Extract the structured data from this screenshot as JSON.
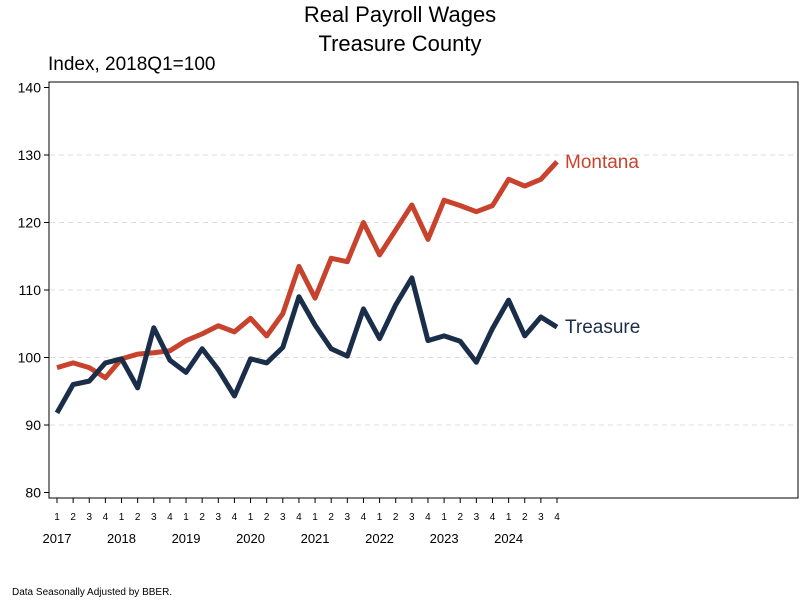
{
  "chart_data": {
    "type": "line",
    "title": "Real Payroll Wages",
    "subtitle": "Treasure County",
    "y_label": "Index, 2018Q1=100",
    "footnote": "Data Seasonally Adjusted by BBER.",
    "categories": [
      "1",
      "2",
      "3",
      "4",
      "1",
      "2",
      "3",
      "4",
      "1",
      "2",
      "3",
      "4",
      "1",
      "2",
      "3",
      "4",
      "1",
      "2",
      "3",
      "4",
      "1",
      "2",
      "3",
      "4",
      "1",
      "2",
      "3",
      "4",
      "1",
      "2",
      "3",
      "4"
    ],
    "category_groups": [
      "2017",
      "2018",
      "2019",
      "2020",
      "2021",
      "2022",
      "2023",
      "2024"
    ],
    "series": [
      {
        "name": "Montana",
        "color": "#c8432d",
        "values": [
          98.5,
          99.2,
          98.5,
          97.0,
          99.8,
          100.5,
          100.7,
          101.0,
          102.5,
          103.5,
          104.7,
          103.8,
          105.8,
          103.2,
          106.5,
          113.5,
          108.8,
          114.7,
          114.2,
          120.0,
          115.2,
          118.9,
          122.6,
          117.5,
          123.3,
          122.5,
          121.6,
          122.5,
          126.4,
          125.4,
          126.4,
          129.0
        ]
      },
      {
        "name": "Treasure",
        "color": "#1a2e4a",
        "values": [
          91.8,
          96.0,
          96.5,
          99.2,
          99.8,
          95.5,
          104.4,
          99.6,
          97.8,
          101.3,
          98.2,
          94.3,
          99.8,
          99.2,
          101.5,
          109.0,
          104.8,
          101.3,
          100.2,
          107.2,
          102.8,
          107.8,
          111.8,
          102.5,
          103.2,
          102.4,
          99.3,
          104.3,
          108.5,
          103.2,
          106.0,
          104.5
        ]
      }
    ],
    "ylim": [
      80,
      140
    ],
    "yticks": [
      80,
      90,
      100,
      110,
      120,
      130,
      140
    ],
    "grid": true
  }
}
